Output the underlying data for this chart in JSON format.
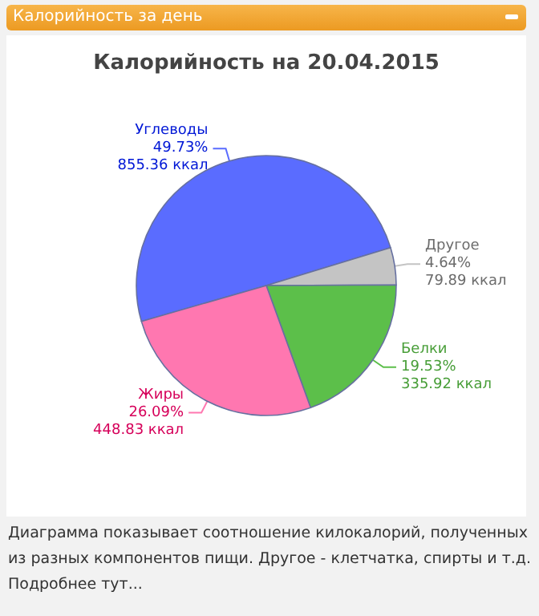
{
  "chart_data": {
    "type": "pie",
    "title": "Калорийность за день",
    "subtitle": "Калорийность на 20.04.2015",
    "categories": [
      "Углеводы",
      "Другое",
      "Белки",
      "Жиры"
    ],
    "values": [
      855.36,
      79.89,
      335.92,
      448.83
    ],
    "colors": [
      "#5a6cff",
      "#c4c4c4",
      "#5cbf4a",
      "#ff77b0"
    ],
    "value_labels": [
      "49.73%\n855.36 ккал",
      "4.64%\n79.89 ккал",
      "19.53%\n335.92 ккал",
      "26.09%\n448.83 ккал"
    ],
    "legend": false,
    "annotations": [
      "Диаграмма показывает соотношение килокалорий, полученных из разных компонентов пищи. Другое - клетчатка, спирты и т.д. Подробнее тут..."
    ]
  }
}
